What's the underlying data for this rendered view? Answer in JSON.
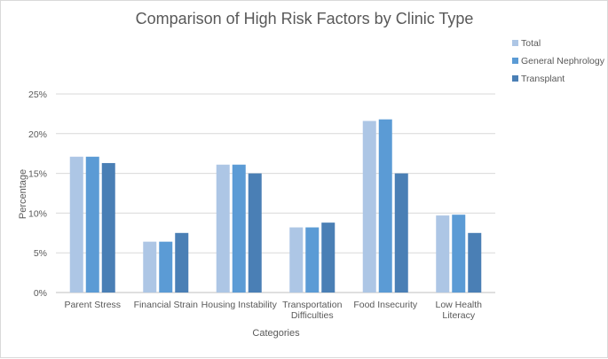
{
  "chart_data": {
    "type": "bar",
    "title": "Comparison of High Risk Factors by Clinic Type",
    "xlabel": "Categories",
    "ylabel": "Percentage",
    "categories": [
      [
        "Parent Stress"
      ],
      [
        "Financial Strain"
      ],
      [
        "Housing Instability"
      ],
      [
        "Transportation",
        "Difficulties"
      ],
      [
        "Food Insecurity"
      ],
      [
        "Low Health",
        "Literacy"
      ]
    ],
    "series": [
      {
        "name": "Total",
        "color": "#adc6e5",
        "values": [
          17.1,
          6.4,
          16.1,
          8.2,
          21.6,
          9.7
        ]
      },
      {
        "name": "General Nephrology",
        "color": "#5b9bd5",
        "values": [
          17.1,
          6.4,
          16.1,
          8.2,
          21.8,
          9.8
        ]
      },
      {
        "name": "Transplant",
        "color": "#4a7fb5",
        "values": [
          16.3,
          7.5,
          15.0,
          8.8,
          15.0,
          7.5
        ]
      }
    ],
    "ylim": [
      0,
      25
    ],
    "yticks": [
      0,
      5,
      10,
      15,
      20,
      25
    ],
    "ytick_labels": [
      "0%",
      "5%",
      "10%",
      "15%",
      "20%",
      "25%"
    ],
    "grid": true,
    "legend_position": "top-right"
  }
}
